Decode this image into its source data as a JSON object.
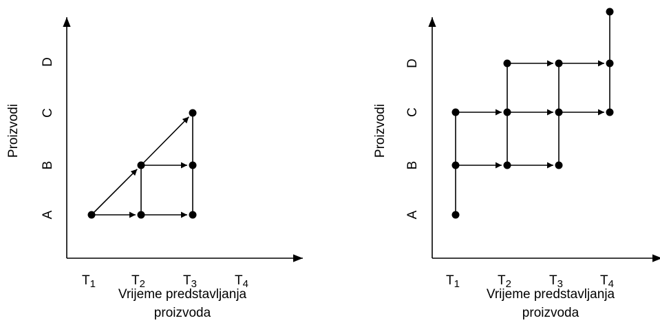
{
  "panels": [
    {
      "y_label": "Proizvodi",
      "y_categories": [
        "A",
        "B",
        "C",
        "D"
      ],
      "x_categories": [
        {
          "main": "T",
          "sub": "1"
        },
        {
          "main": "T",
          "sub": "2"
        },
        {
          "main": "T",
          "sub": "3"
        },
        {
          "main": "T",
          "sub": "4"
        }
      ],
      "x_label_lines": [
        "Vrijeme predstavljanja",
        "proizvoda"
      ]
    },
    {
      "y_label": "Proizvodi",
      "y_categories": [
        "A",
        "B",
        "C",
        "D"
      ],
      "x_categories": [
        {
          "main": "T",
          "sub": "1"
        },
        {
          "main": "T",
          "sub": "2"
        },
        {
          "main": "T",
          "sub": "3"
        },
        {
          "main": "T",
          "sub": "4"
        }
      ],
      "x_label_lines": [
        "Vrijeme predstavljanja",
        "proizvoda"
      ]
    }
  ]
}
